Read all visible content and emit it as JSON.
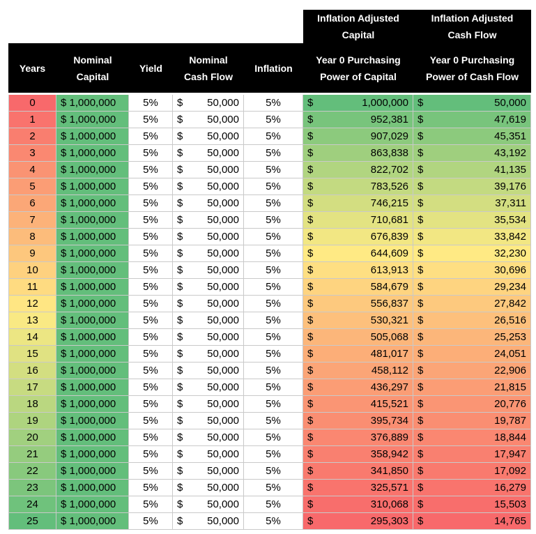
{
  "headers": {
    "adj_capital_top": "Inflation Adjusted\nCapital",
    "adj_cashflow_top": "Inflation Adjusted\nCash Flow",
    "years": "Years",
    "nominal_capital": "Nominal\nCapital",
    "yield": "Yield",
    "nominal_cash_flow": "Nominal\nCash Flow",
    "inflation": "Inflation",
    "pp_capital": "Year 0 Purchasing\nPower of Capital",
    "pp_cash_flow": "Year 0 Purchasing\nPower of Cash Flow"
  },
  "currency_symbol": "$",
  "nominal_capital_value": "$ 1,000,000",
  "yield_value": "5%",
  "nominal_cash_flow_value": "50,000",
  "inflation_value": "5%",
  "rows": [
    {
      "year": "0",
      "adj_capital": "1,000,000",
      "adj_cash_flow": "50,000"
    },
    {
      "year": "1",
      "adj_capital": "952,381",
      "adj_cash_flow": "47,619"
    },
    {
      "year": "2",
      "adj_capital": "907,029",
      "adj_cash_flow": "45,351"
    },
    {
      "year": "3",
      "adj_capital": "863,838",
      "adj_cash_flow": "43,192"
    },
    {
      "year": "4",
      "adj_capital": "822,702",
      "adj_cash_flow": "41,135"
    },
    {
      "year": "5",
      "adj_capital": "783,526",
      "adj_cash_flow": "39,176"
    },
    {
      "year": "6",
      "adj_capital": "746,215",
      "adj_cash_flow": "37,311"
    },
    {
      "year": "7",
      "adj_capital": "710,681",
      "adj_cash_flow": "35,534"
    },
    {
      "year": "8",
      "adj_capital": "676,839",
      "adj_cash_flow": "33,842"
    },
    {
      "year": "9",
      "adj_capital": "644,609",
      "adj_cash_flow": "32,230"
    },
    {
      "year": "10",
      "adj_capital": "613,913",
      "adj_cash_flow": "30,696"
    },
    {
      "year": "11",
      "adj_capital": "584,679",
      "adj_cash_flow": "29,234"
    },
    {
      "year": "12",
      "adj_capital": "556,837",
      "adj_cash_flow": "27,842"
    },
    {
      "year": "13",
      "adj_capital": "530,321",
      "adj_cash_flow": "26,516"
    },
    {
      "year": "14",
      "adj_capital": "505,068",
      "adj_cash_flow": "25,253"
    },
    {
      "year": "15",
      "adj_capital": "481,017",
      "adj_cash_flow": "24,051"
    },
    {
      "year": "16",
      "adj_capital": "458,112",
      "adj_cash_flow": "22,906"
    },
    {
      "year": "17",
      "adj_capital": "436,297",
      "adj_cash_flow": "21,815"
    },
    {
      "year": "18",
      "adj_capital": "415,521",
      "adj_cash_flow": "20,776"
    },
    {
      "year": "19",
      "adj_capital": "395,734",
      "adj_cash_flow": "19,787"
    },
    {
      "year": "20",
      "adj_capital": "376,889",
      "adj_cash_flow": "18,844"
    },
    {
      "year": "21",
      "adj_capital": "358,942",
      "adj_cash_flow": "17,947"
    },
    {
      "year": "22",
      "adj_capital": "341,850",
      "adj_cash_flow": "17,092"
    },
    {
      "year": "23",
      "adj_capital": "325,571",
      "adj_cash_flow": "16,279"
    },
    {
      "year": "24",
      "adj_capital": "310,068",
      "adj_cash_flow": "15,503"
    },
    {
      "year": "25",
      "adj_capital": "295,303",
      "adj_cash_flow": "14,765"
    }
  ],
  "colors": {
    "header_bg": "#000000",
    "header_text": "#ffffff",
    "scale_red": "#f8696b",
    "scale_yellow": "#ffeb84",
    "scale_green": "#63be7b",
    "nominal_capital_fill": "#63be7b",
    "grid_line": "#c9c9c9"
  }
}
